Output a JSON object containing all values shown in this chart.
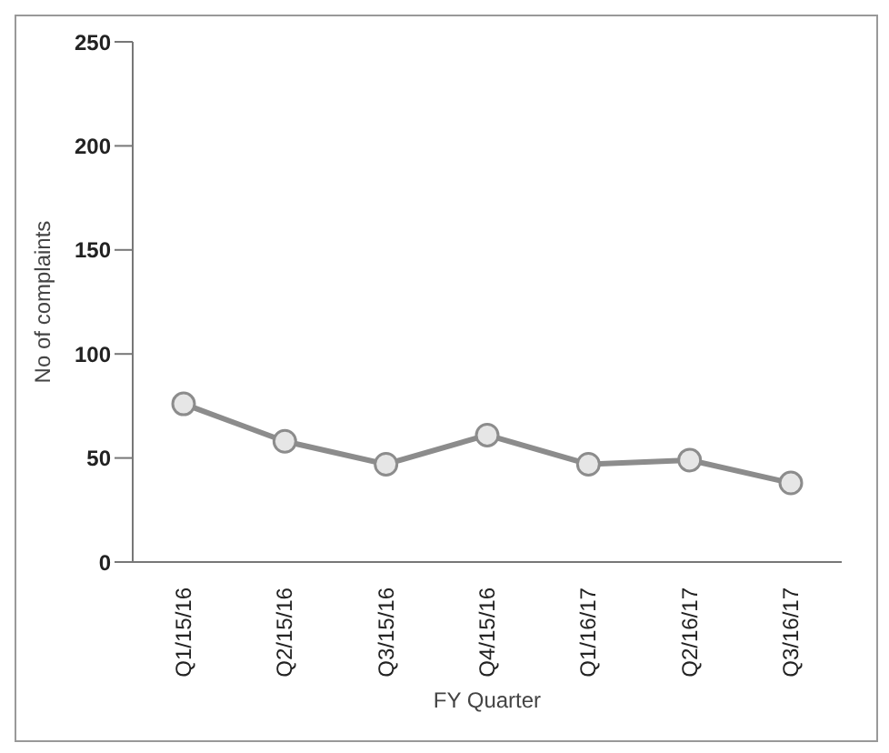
{
  "chart_data": {
    "type": "line",
    "xlabel": "FY Quarter",
    "ylabel": "No of complaints",
    "categories": [
      "Q1/15/16",
      "Q2/15/16",
      "Q3/15/16",
      "Q4/15/16",
      "Q1/16/17",
      "Q2/16/17",
      "Q3/16/17"
    ],
    "series": [
      {
        "color": "#8c8c8c",
        "values": [
          76,
          58,
          47,
          61,
          47,
          49,
          38
        ]
      }
    ],
    "ylim": [
      0,
      250
    ],
    "yticks": [
      0,
      50,
      100,
      150,
      200,
      250
    ],
    "marker": "circle",
    "line_style": "solid"
  }
}
